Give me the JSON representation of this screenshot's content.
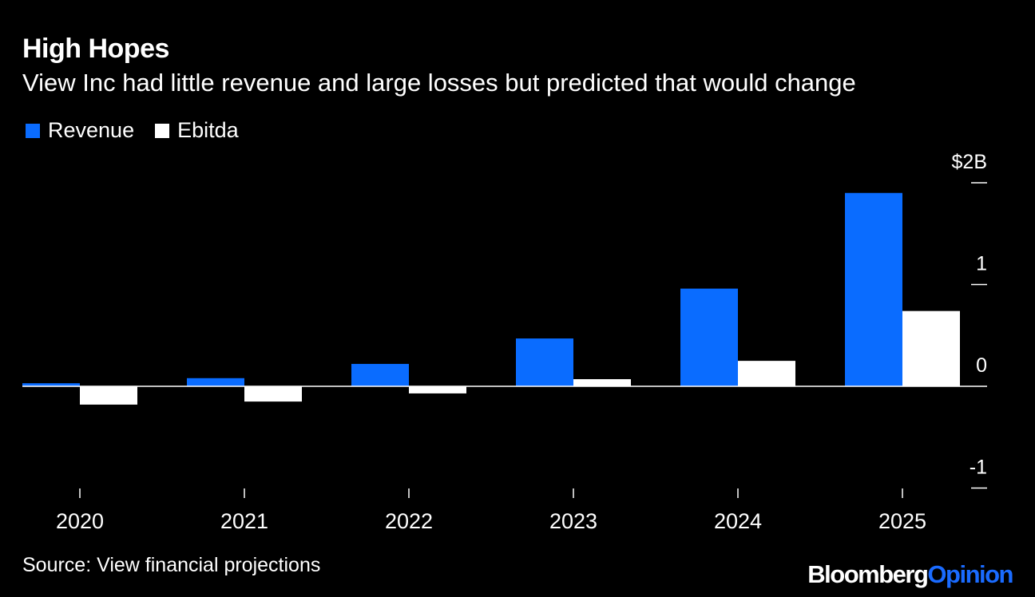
{
  "header": {
    "title": "High Hopes",
    "subtitle": "View Inc had little revenue and large losses but predicted that would change"
  },
  "legend": [
    {
      "label": "Revenue",
      "color": "#0a6cff"
    },
    {
      "label": "Ebitda",
      "color": "#ffffff"
    }
  ],
  "chart_data": {
    "type": "bar",
    "title": "High Hopes",
    "subtitle": "View Inc had little revenue and large losses but predicted that would change",
    "categories": [
      "2020",
      "2021",
      "2022",
      "2023",
      "2024",
      "2025"
    ],
    "series": [
      {
        "name": "Revenue",
        "color": "#0a6cff",
        "values": [
          0.03,
          0.08,
          0.22,
          0.47,
          0.96,
          1.9
        ]
      },
      {
        "name": "Ebitda",
        "color": "#ffffff",
        "values": [
          -0.18,
          -0.15,
          -0.07,
          0.07,
          0.25,
          0.74
        ]
      }
    ],
    "y_ticks": [
      {
        "value": 2,
        "label": "$2B"
      },
      {
        "value": 1,
        "label": "1"
      },
      {
        "value": 0,
        "label": "0"
      },
      {
        "value": -1,
        "label": "-1"
      }
    ],
    "ylim": [
      -1,
      2
    ],
    "xlabel": "",
    "ylabel": "",
    "y_axis_side": "right",
    "grid": false
  },
  "footer": {
    "source": "Source: View financial projections",
    "brand_part1": "Bloomberg",
    "brand_part2": "Opinion"
  }
}
